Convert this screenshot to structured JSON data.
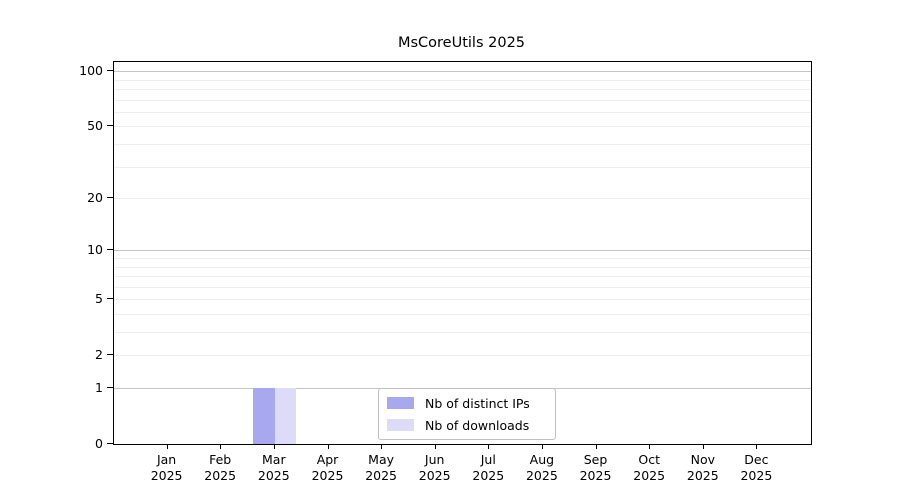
{
  "title": "MsCoreUtils 2025",
  "chart_data": {
    "type": "bar",
    "scale": "log1p",
    "categories": [
      "Jan 2025",
      "Feb 2025",
      "Mar 2025",
      "Apr 2025",
      "May 2025",
      "Jun 2025",
      "Jul 2025",
      "Aug 2025",
      "Sep 2025",
      "Oct 2025",
      "Nov 2025",
      "Dec 2025"
    ],
    "series": [
      {
        "name": "Nb of distinct IPs",
        "color": "#a8a8ef",
        "values": [
          0,
          0,
          1,
          0,
          0,
          0,
          0,
          0,
          0,
          0,
          0,
          0
        ]
      },
      {
        "name": "Nb of downloads",
        "color": "#dcdcf8",
        "values": [
          0,
          0,
          1,
          0,
          0,
          0,
          0,
          0,
          0,
          0,
          0,
          0
        ]
      }
    ],
    "yticks": [
      0,
      1,
      2,
      5,
      10,
      20,
      50,
      100
    ],
    "major_gridlines": [
      1,
      10,
      100
    ],
    "minor_gridlines": [
      2,
      3,
      4,
      5,
      6,
      7,
      8,
      9,
      20,
      30,
      40,
      50,
      60,
      70,
      80,
      90
    ],
    "ylim": [
      0,
      112
    ],
    "xlim": [
      -1,
      12
    ],
    "bar_group_fraction": 0.8,
    "legend_position": "lower center",
    "grid": "on",
    "xlabel": "",
    "ylabel": ""
  },
  "colors": {
    "axis": "#000000",
    "major_grid": "#c6c6c6",
    "minor_grid": "#ededed",
    "background": "#ffffff"
  }
}
